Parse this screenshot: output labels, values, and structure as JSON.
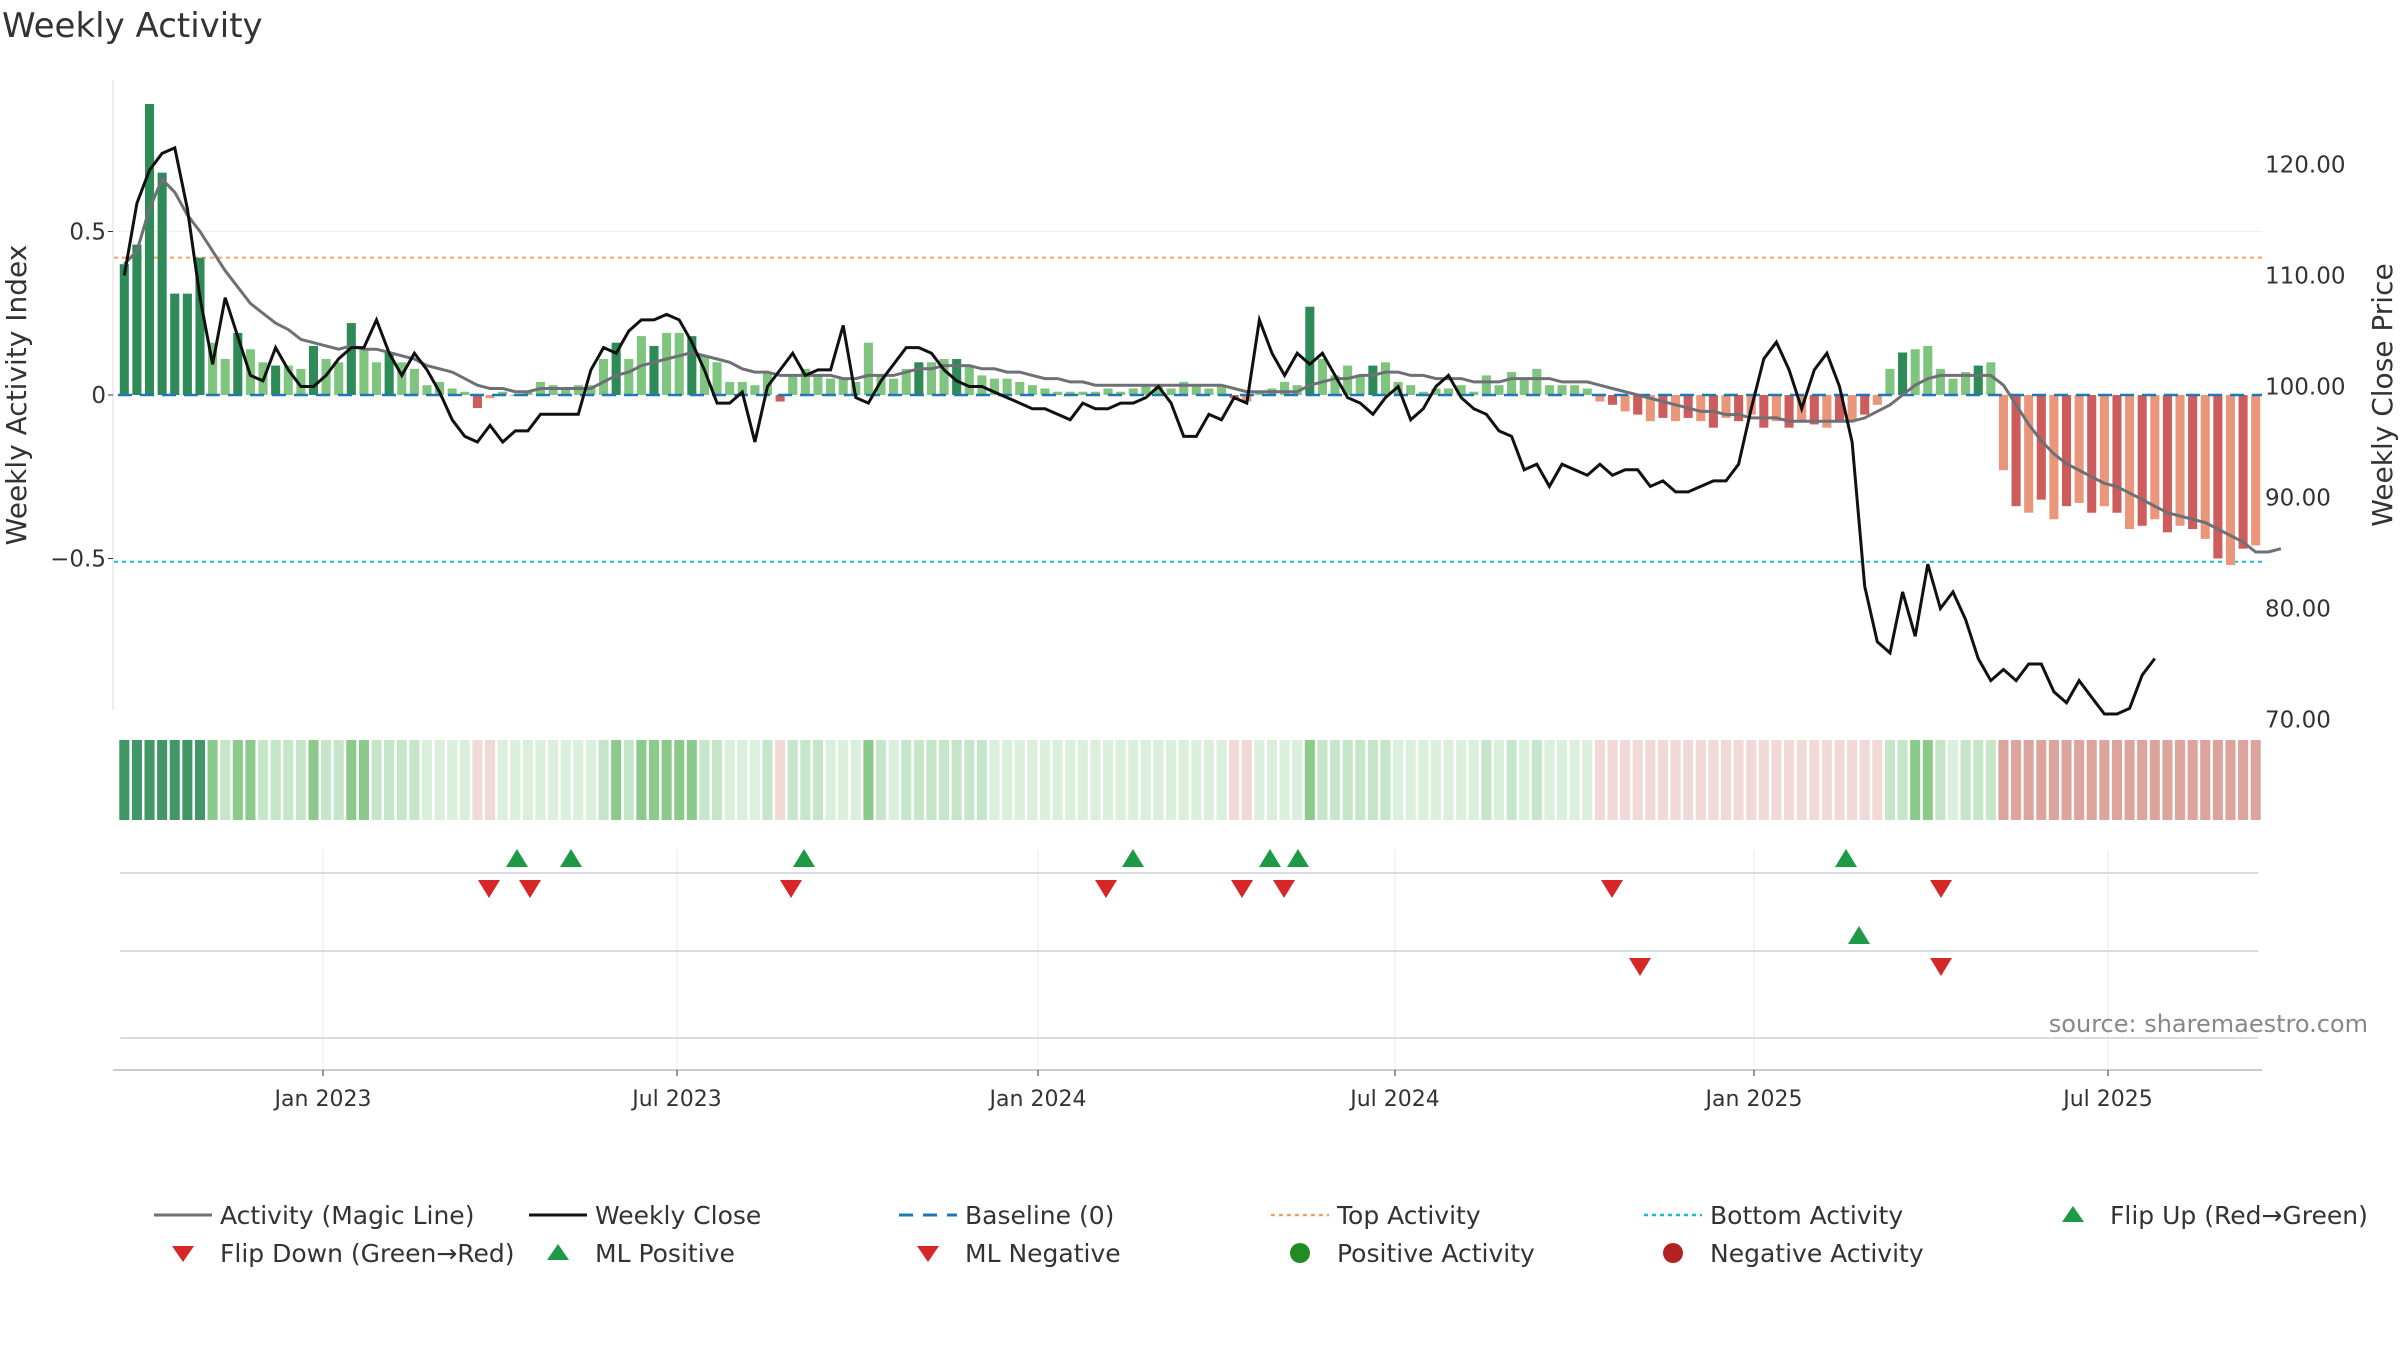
{
  "title": "Weekly Activity",
  "source": "source: sharemaestro.com",
  "colors": {
    "strong_pos": "#2e8b57",
    "light_pos": "#7fc47f",
    "strong_neg": "#cd5c5c",
    "light_neg": "#e9967a",
    "magic_line": "#6e7076",
    "close_line": "#111111",
    "baseline": "#1f77b4",
    "top": "#f4a460",
    "bottom": "#17becf",
    "marker_green": "#1e9a46",
    "marker_red": "#d62728"
  },
  "chart_data": {
    "type": "bar",
    "x_tick_labels": [
      "Jan 2023",
      "Jul 2023",
      "Jan 2024",
      "Jul 2024",
      "Jan 2025",
      "Jul 2025"
    ],
    "y_left": {
      "label": "Weekly Activity Index",
      "ticks": [
        0.5,
        0,
        -0.5
      ],
      "tick_labels": [
        "0.5",
        "0",
        "−0.5"
      ],
      "lim": [
        -0.97,
        1.0
      ]
    },
    "y_right": {
      "label": "Weekly Close Price",
      "ticks": [
        120,
        110,
        100,
        90,
        80,
        70
      ],
      "tick_labels": [
        "120.00",
        "110.00",
        "100.00",
        "90.00",
        "80.00",
        "70.00"
      ],
      "lim": [
        67,
        125
      ]
    },
    "top_activity": 0.42,
    "bottom_activity": -0.51,
    "activity": [
      0.4,
      0.46,
      0.89,
      0.68,
      0.31,
      0.31,
      0.42,
      0.16,
      0.11,
      0.19,
      0.14,
      0.1,
      0.09,
      0.09,
      0.08,
      0.15,
      0.11,
      0.1,
      0.22,
      0.14,
      0.1,
      0.13,
      0.1,
      0.08,
      0.03,
      0.04,
      0.02,
      0.01,
      -0.04,
      -0.01,
      0.01,
      0.0,
      0.01,
      0.04,
      0.03,
      0.02,
      0.03,
      0.03,
      0.11,
      0.16,
      0.11,
      0.18,
      0.15,
      0.19,
      0.19,
      0.18,
      0.12,
      0.1,
      0.04,
      0.04,
      0.03,
      0.07,
      -0.02,
      0.06,
      0.08,
      0.06,
      0.05,
      0.05,
      0.04,
      0.16,
      0.06,
      0.05,
      0.08,
      0.1,
      0.1,
      0.11,
      0.11,
      0.09,
      0.06,
      0.05,
      0.05,
      0.04,
      0.03,
      0.02,
      0.01,
      0.01,
      0.01,
      0.01,
      0.02,
      0.01,
      0.02,
      0.03,
      0.03,
      0.02,
      0.04,
      0.03,
      0.02,
      0.03,
      -0.01,
      -0.02,
      0.01,
      0.02,
      0.04,
      0.03,
      0.27,
      0.11,
      0.06,
      0.09,
      0.06,
      0.09,
      0.1,
      0.04,
      0.03,
      0.01,
      0.02,
      0.02,
      0.03,
      0.01,
      0.06,
      0.03,
      0.07,
      0.05,
      0.08,
      0.03,
      0.03,
      0.03,
      0.02,
      -0.02,
      -0.03,
      -0.05,
      -0.06,
      -0.08,
      -0.07,
      -0.08,
      -0.07,
      -0.08,
      -0.1,
      -0.07,
      -0.08,
      -0.06,
      -0.1,
      -0.08,
      -0.1,
      -0.08,
      -0.09,
      -0.1,
      -0.08,
      -0.08,
      -0.06,
      -0.03,
      0.08,
      0.13,
      0.14,
      0.15,
      0.08,
      0.05,
      0.07,
      0.09,
      0.1,
      -0.23,
      -0.34,
      -0.36,
      -0.32,
      -0.38,
      -0.34,
      -0.33,
      -0.36,
      -0.34,
      -0.36,
      -0.41,
      -0.4,
      -0.38,
      -0.42,
      -0.4,
      -0.41,
      -0.44,
      -0.5,
      -0.52,
      -0.47,
      -0.46
    ],
    "magic_line": [
      0.4,
      0.44,
      0.57,
      0.66,
      0.62,
      0.55,
      0.5,
      0.44,
      0.38,
      0.33,
      0.28,
      0.25,
      0.22,
      0.2,
      0.17,
      0.16,
      0.15,
      0.14,
      0.15,
      0.14,
      0.14,
      0.13,
      0.12,
      0.11,
      0.09,
      0.08,
      0.07,
      0.05,
      0.03,
      0.02,
      0.02,
      0.01,
      0.01,
      0.02,
      0.02,
      0.02,
      0.02,
      0.02,
      0.04,
      0.06,
      0.07,
      0.09,
      0.1,
      0.11,
      0.12,
      0.13,
      0.12,
      0.11,
      0.1,
      0.08,
      0.07,
      0.07,
      0.06,
      0.06,
      0.06,
      0.06,
      0.06,
      0.05,
      0.05,
      0.06,
      0.06,
      0.06,
      0.07,
      0.08,
      0.08,
      0.09,
      0.09,
      0.09,
      0.08,
      0.08,
      0.07,
      0.07,
      0.06,
      0.05,
      0.05,
      0.04,
      0.04,
      0.03,
      0.03,
      0.03,
      0.03,
      0.03,
      0.03,
      0.03,
      0.03,
      0.03,
      0.03,
      0.03,
      0.02,
      0.01,
      0.01,
      0.01,
      0.01,
      0.01,
      0.03,
      0.04,
      0.05,
      0.05,
      0.06,
      0.06,
      0.07,
      0.07,
      0.06,
      0.06,
      0.05,
      0.05,
      0.05,
      0.04,
      0.04,
      0.04,
      0.05,
      0.05,
      0.05,
      0.05,
      0.04,
      0.04,
      0.04,
      0.03,
      0.02,
      0.01,
      0.0,
      -0.01,
      -0.02,
      -0.03,
      -0.04,
      -0.05,
      -0.05,
      -0.06,
      -0.06,
      -0.07,
      -0.07,
      -0.07,
      -0.08,
      -0.08,
      -0.08,
      -0.08,
      -0.08,
      -0.08,
      -0.07,
      -0.05,
      -0.03,
      0.0,
      0.03,
      0.05,
      0.06,
      0.06,
      0.06,
      0.06,
      0.06,
      0.03,
      -0.03,
      -0.09,
      -0.14,
      -0.18,
      -0.21,
      -0.23,
      -0.25,
      -0.27,
      -0.28,
      -0.3,
      -0.32,
      -0.34,
      -0.36,
      -0.37,
      -0.38,
      -0.39,
      -0.41,
      -0.43,
      -0.45,
      -0.48,
      -0.48,
      -0.47
    ],
    "weekly_close": [
      110.0,
      116.5,
      119.5,
      121.0,
      121.5,
      116.0,
      108.0,
      102.0,
      108.0,
      104.5,
      101.0,
      100.5,
      103.5,
      101.5,
      100.0,
      100.0,
      101.0,
      102.5,
      103.5,
      103.5,
      106.0,
      103.0,
      101.0,
      103.0,
      101.5,
      99.5,
      97.0,
      95.5,
      95.0,
      96.5,
      95.0,
      96.0,
      96.0,
      97.5,
      97.5,
      97.5,
      97.5,
      101.5,
      103.5,
      103.0,
      105.0,
      106.0,
      106.0,
      106.5,
      106.0,
      104.0,
      101.5,
      98.5,
      98.5,
      99.5,
      95.0,
      100.0,
      101.5,
      103.0,
      101.0,
      101.5,
      101.5,
      105.5,
      99.0,
      98.5,
      100.5,
      102.0,
      103.5,
      103.5,
      103.0,
      101.5,
      100.5,
      100.0,
      100.0,
      99.5,
      99.0,
      98.5,
      98.0,
      98.0,
      97.5,
      97.0,
      98.5,
      98.0,
      98.0,
      98.5,
      98.5,
      99.0,
      100.0,
      98.5,
      95.5,
      95.5,
      97.5,
      97.0,
      99.0,
      98.5,
      106.0,
      103.0,
      101.0,
      103.0,
      102.0,
      103.0,
      101.0,
      99.0,
      98.5,
      97.5,
      99.0,
      100.0,
      97.0,
      98.0,
      100.0,
      101.0,
      99.0,
      98.0,
      97.5,
      96.0,
      95.5,
      92.5,
      93.0,
      91.0,
      93.0,
      92.5,
      92.0,
      93.0,
      92.0,
      92.5,
      92.5,
      91.0,
      91.5,
      90.5,
      90.5,
      91.0,
      91.5,
      91.5,
      93.0,
      98.0,
      102.5,
      104.0,
      101.5,
      98.0,
      101.5,
      103.0,
      100.0,
      95.0,
      82.0,
      77.0,
      76.0,
      81.5,
      77.5,
      84.0,
      80.0,
      81.5,
      79.0,
      75.5,
      73.5,
      74.5,
      73.5,
      75.0,
      75.0,
      72.5,
      71.5,
      73.5,
      72.0,
      70.5,
      70.5,
      71.0,
      74.0,
      75.5
    ],
    "flip_up": [
      12,
      14,
      23,
      37,
      42,
      43,
      64
    ],
    "flip_down": [
      11,
      13,
      22,
      35,
      40,
      41,
      55,
      67
    ],
    "ml_positive": [
      65
    ],
    "ml_negative": [
      56,
      67
    ]
  },
  "legend": [
    {
      "label": "Activity (Magic Line)",
      "key": "magic"
    },
    {
      "label": "Weekly Close",
      "key": "close"
    },
    {
      "label": "Baseline (0)",
      "key": "baseline"
    },
    {
      "label": "Top Activity",
      "key": "top"
    },
    {
      "label": "Bottom Activity",
      "key": "bottom"
    },
    {
      "label": "Flip Up (Red→Green)",
      "key": "flipup"
    },
    {
      "label": "Flip Down (Green→Red)",
      "key": "flipdown"
    },
    {
      "label": "ML Positive",
      "key": "mlpos"
    },
    {
      "label": "ML Negative",
      "key": "mlneg"
    },
    {
      "label": "Positive Activity",
      "key": "posdot"
    },
    {
      "label": "Negative Activity",
      "key": "negdot"
    }
  ]
}
